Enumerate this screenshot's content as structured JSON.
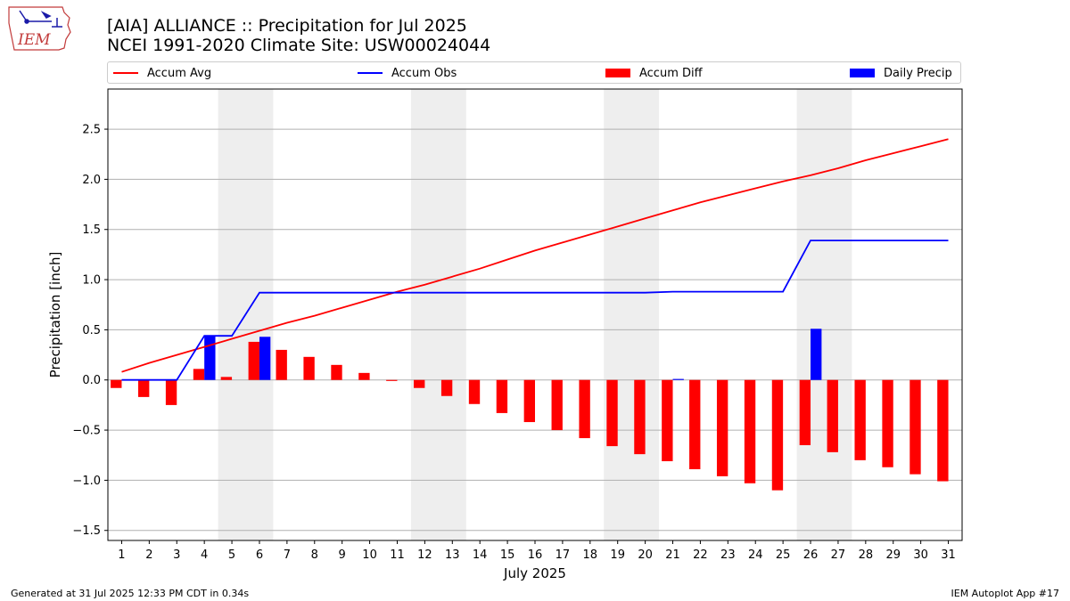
{
  "header": {
    "logo_text": "IEM",
    "title_line1": "[AIA] ALLIANCE :: Precipitation for Jul 2025",
    "title_line2": "NCEI 1991-2020 Climate Site: USW00024044"
  },
  "legend": {
    "placement": "top, above plot",
    "items": [
      {
        "label": "Accum Avg",
        "kind": "line",
        "color": "#ff0000"
      },
      {
        "label": "Accum Obs",
        "kind": "line",
        "color": "#0000ff"
      },
      {
        "label": "Accum Diff",
        "kind": "patch",
        "color": "#ff0000"
      },
      {
        "label": "Daily Precip",
        "kind": "patch",
        "color": "#0000ff"
      }
    ]
  },
  "footer": {
    "generated": "Generated at 31 Jul 2025 12:33 PM CDT in 0.34s",
    "app": "IEM Autoplot App #17"
  },
  "chart_data": {
    "type": "bar",
    "xlabel": "July 2025",
    "ylabel": "Precipitation [inch]",
    "xlim": [
      0.5,
      31.5
    ],
    "ylim": [
      -1.6,
      2.9
    ],
    "yticks": [
      -1.5,
      -1.0,
      -0.5,
      0.0,
      0.5,
      1.0,
      1.5,
      2.0,
      2.5
    ],
    "ytick_labels": [
      "−1.5",
      "−1.0",
      "−0.5",
      "0.0",
      "0.5",
      "1.0",
      "1.5",
      "2.0",
      "2.5"
    ],
    "grid": "horizontal",
    "weekend_shading": [
      [
        4.5,
        6.5
      ],
      [
        11.5,
        13.5
      ],
      [
        18.5,
        20.5
      ],
      [
        25.5,
        27.5
      ]
    ],
    "shade_color": "#eeeeee",
    "days": [
      1,
      2,
      3,
      4,
      5,
      6,
      7,
      8,
      9,
      10,
      11,
      12,
      13,
      14,
      15,
      16,
      17,
      18,
      19,
      20,
      21,
      22,
      23,
      24,
      25,
      26,
      27,
      28,
      29,
      30,
      31
    ],
    "series": [
      {
        "name": "Accum Avg",
        "kind": "line",
        "color": "#ff0000",
        "values": [
          0.08,
          0.17,
          0.25,
          0.33,
          0.41,
          0.49,
          0.57,
          0.64,
          0.72,
          0.8,
          0.88,
          0.95,
          1.03,
          1.11,
          1.2,
          1.29,
          1.37,
          1.45,
          1.53,
          1.61,
          1.69,
          1.77,
          1.84,
          1.91,
          1.98,
          2.04,
          2.11,
          2.19,
          2.26,
          2.33,
          2.4
        ]
      },
      {
        "name": "Accum Obs",
        "kind": "line",
        "color": "#0000ff",
        "values": [
          0.0,
          0.0,
          0.0,
          0.44,
          0.44,
          0.87,
          0.87,
          0.87,
          0.87,
          0.87,
          0.87,
          0.87,
          0.87,
          0.87,
          0.87,
          0.87,
          0.87,
          0.87,
          0.87,
          0.87,
          0.88,
          0.88,
          0.88,
          0.88,
          0.88,
          1.39,
          1.39,
          1.39,
          1.39,
          1.39,
          1.39
        ]
      },
      {
        "name": "Accum Diff",
        "kind": "bar",
        "color": "#ff0000",
        "values": [
          -0.08,
          -0.17,
          -0.25,
          0.11,
          0.03,
          0.38,
          0.3,
          0.23,
          0.15,
          0.07,
          -0.01,
          -0.08,
          -0.16,
          -0.24,
          -0.33,
          -0.42,
          -0.5,
          -0.58,
          -0.66,
          -0.74,
          -0.81,
          -0.89,
          -0.96,
          -1.03,
          -1.1,
          -0.65,
          -0.72,
          -0.8,
          -0.87,
          -0.94,
          -1.01
        ]
      },
      {
        "name": "Daily Precip",
        "kind": "bar",
        "color": "#0000ff",
        "values": [
          0,
          0,
          0,
          0.44,
          0,
          0.43,
          0,
          0,
          0,
          0,
          0,
          0,
          0,
          0,
          0,
          0,
          0,
          0,
          0,
          0,
          0.01,
          0,
          0,
          0,
          0,
          0.51,
          0,
          0,
          0,
          0,
          0
        ]
      }
    ]
  }
}
